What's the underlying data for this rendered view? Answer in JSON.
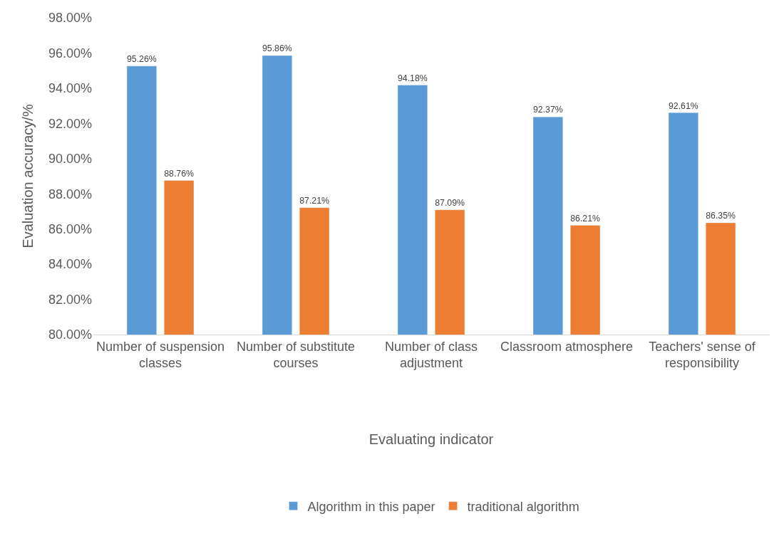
{
  "chart_data": {
    "type": "bar",
    "xlabel": "Evaluating indicator",
    "ylabel": "Evaluation accuracy/%",
    "categories": [
      "Number of suspension classes",
      "Number of substitute courses",
      "Number of class adjustment",
      "Classroom atmosphere",
      "Teachers' sense of responsibility"
    ],
    "series": [
      {
        "name": "Algorithm in this paper",
        "color": "#5b9bd5",
        "values": [
          95.26,
          95.86,
          94.18,
          92.37,
          92.61
        ],
        "value_labels": [
          "95.26%",
          "95.86%",
          "94.18%",
          "92.37%",
          "92.61%"
        ]
      },
      {
        "name": "traditional algorithm",
        "color": "#ed7d31",
        "values": [
          88.76,
          87.21,
          87.09,
          86.21,
          86.35
        ],
        "value_labels": [
          "88.76%",
          "87.21%",
          "87.09%",
          "86.21%",
          "86.35%"
        ]
      }
    ],
    "ylim": [
      80,
      98
    ],
    "yticks": [
      {
        "value": 80,
        "label": "80.00%"
      },
      {
        "value": 82,
        "label": "82.00%"
      },
      {
        "value": 84,
        "label": "84.00%"
      },
      {
        "value": 86,
        "label": "86.00%"
      },
      {
        "value": 88,
        "label": "88.00%"
      },
      {
        "value": 90,
        "label": "90.00%"
      },
      {
        "value": 92,
        "label": "92.00%"
      },
      {
        "value": 94,
        "label": "94.00%"
      },
      {
        "value": 96,
        "label": "96.00%"
      },
      {
        "value": 98,
        "label": "98.00%"
      }
    ],
    "grid": false,
    "legend": "bottom"
  }
}
